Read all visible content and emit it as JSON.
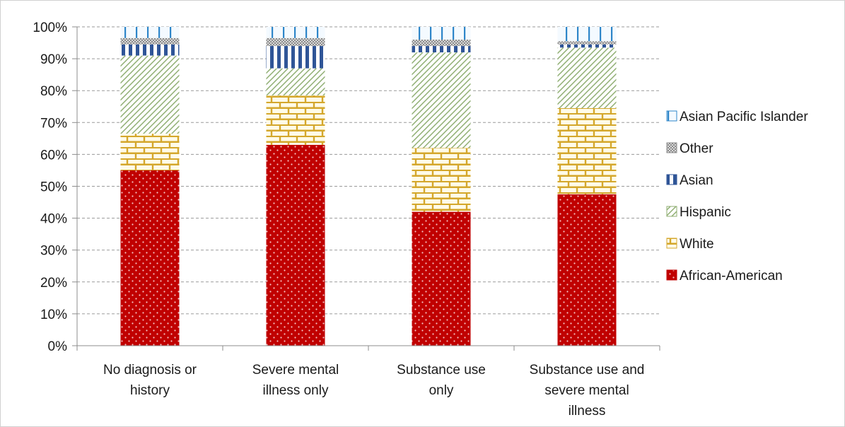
{
  "chart_data": {
    "type": "bar",
    "stacked": true,
    "categories": [
      [
        "No diagnosis or",
        "history"
      ],
      [
        "Severe mental",
        "illness only"
      ],
      [
        "Substance use",
        "only"
      ],
      [
        "Substance use and",
        "severe mental",
        "illness"
      ]
    ],
    "series": [
      {
        "name": "African-American",
        "color": "#c00000",
        "pattern": "dots",
        "values": [
          55,
          63,
          42,
          47.5
        ]
      },
      {
        "name": "White",
        "color": "#d4a72c",
        "pattern": "bricks",
        "values": [
          11.5,
          15.5,
          20,
          27
        ]
      },
      {
        "name": "Hispanic",
        "color": "#8fae72",
        "pattern": "diagonal-lines",
        "values": [
          24.5,
          8.5,
          30,
          19
        ]
      },
      {
        "name": "Asian",
        "color": "#2f5597",
        "pattern": "vertical-stripes",
        "values": [
          3.5,
          7,
          2,
          1
        ]
      },
      {
        "name": "Other",
        "color": "#8c8c8c",
        "pattern": "checker",
        "values": [
          2,
          2.5,
          2,
          1
        ]
      },
      {
        "name": "Asian Pacific Islander",
        "color": "#2e86c9",
        "pattern": "grid",
        "values": [
          3.5,
          3.5,
          4,
          4.5
        ]
      }
    ],
    "y_ticks": [
      "0%",
      "10%",
      "20%",
      "30%",
      "40%",
      "50%",
      "60%",
      "70%",
      "80%",
      "90%",
      "100%"
    ],
    "ylim": [
      0,
      100
    ],
    "grid": true,
    "legend_position": "right",
    "legend_order": [
      "Asian Pacific Islander",
      "Other",
      "Asian",
      "Hispanic",
      "White",
      "African-American"
    ]
  }
}
